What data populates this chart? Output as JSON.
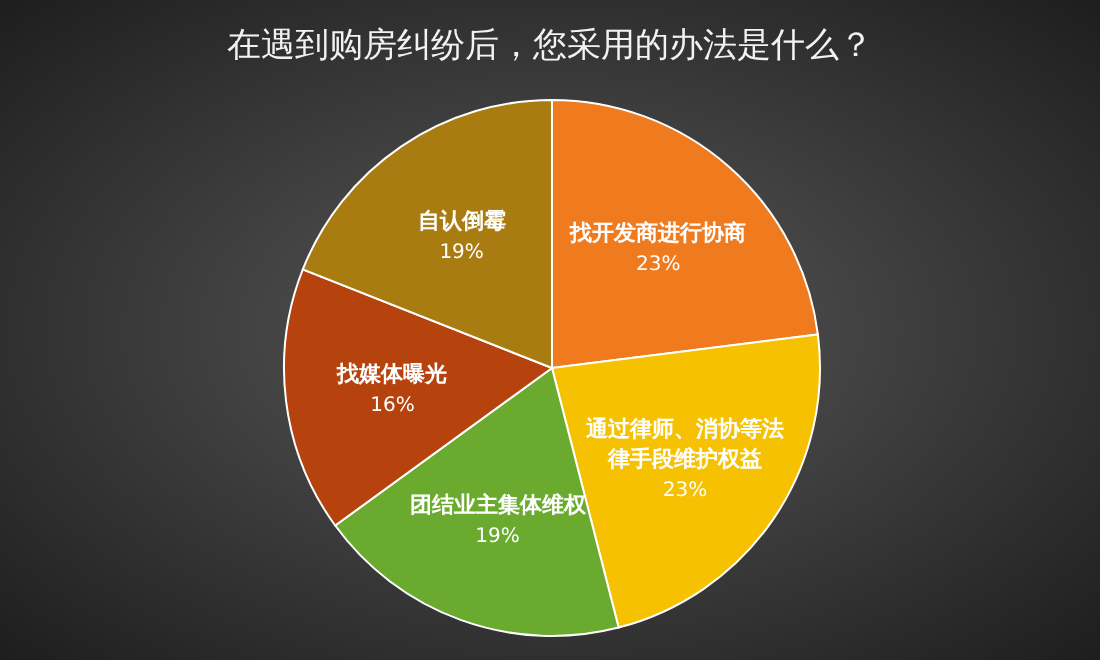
{
  "chart_data": {
    "type": "pie",
    "title": "在遇到购房纠纷后，您采用的办法是什么？",
    "categories": [
      "找开发商进行协商",
      "通过律师、消协等法律手段维护权益",
      "团结业主集体维权",
      "找媒体曝光",
      "自认倒霉"
    ],
    "values": [
      23,
      23,
      19,
      16,
      19
    ],
    "colors": [
      "#f07b1f",
      "#f6c100",
      "#6aab2f",
      "#b6420d",
      "#a97c12"
    ],
    "value_labels": [
      "23%",
      "23%",
      "19%",
      "16%",
      "19%"
    ]
  }
}
